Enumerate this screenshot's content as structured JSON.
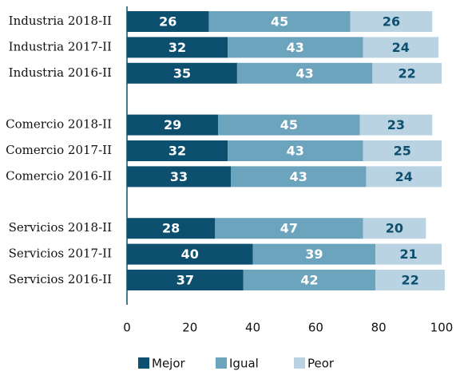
{
  "chart_data": {
    "type": "stacked-barh",
    "categories": [
      "Industria 2018-II",
      "Industria 2017-II",
      "Industria 2016-II",
      null,
      "Comercio 2018-II",
      "Comercio 2017-II",
      "Comercio 2016-II",
      null,
      "Servicios 2018-II",
      "Servicios 2017-II",
      "Servicios 2016-II"
    ],
    "series": [
      {
        "name": "Mejor",
        "color": "#0d4f6e",
        "label_color": "#ffffff",
        "values": [
          26,
          32,
          35,
          null,
          29,
          32,
          33,
          null,
          28,
          40,
          37
        ]
      },
      {
        "name": "Igual",
        "color": "#6ca3bd",
        "label_color": "#ffffff",
        "values": [
          45,
          43,
          43,
          null,
          45,
          43,
          43,
          null,
          47,
          39,
          42
        ]
      },
      {
        "name": "Peor",
        "color": "#b9d3e2",
        "label_color": "#0d4f6e",
        "values": [
          26,
          24,
          22,
          null,
          23,
          25,
          24,
          null,
          20,
          21,
          22
        ]
      }
    ],
    "xlim": [
      0,
      100
    ],
    "xticks": [
      0,
      20,
      40,
      60,
      80,
      100
    ]
  }
}
